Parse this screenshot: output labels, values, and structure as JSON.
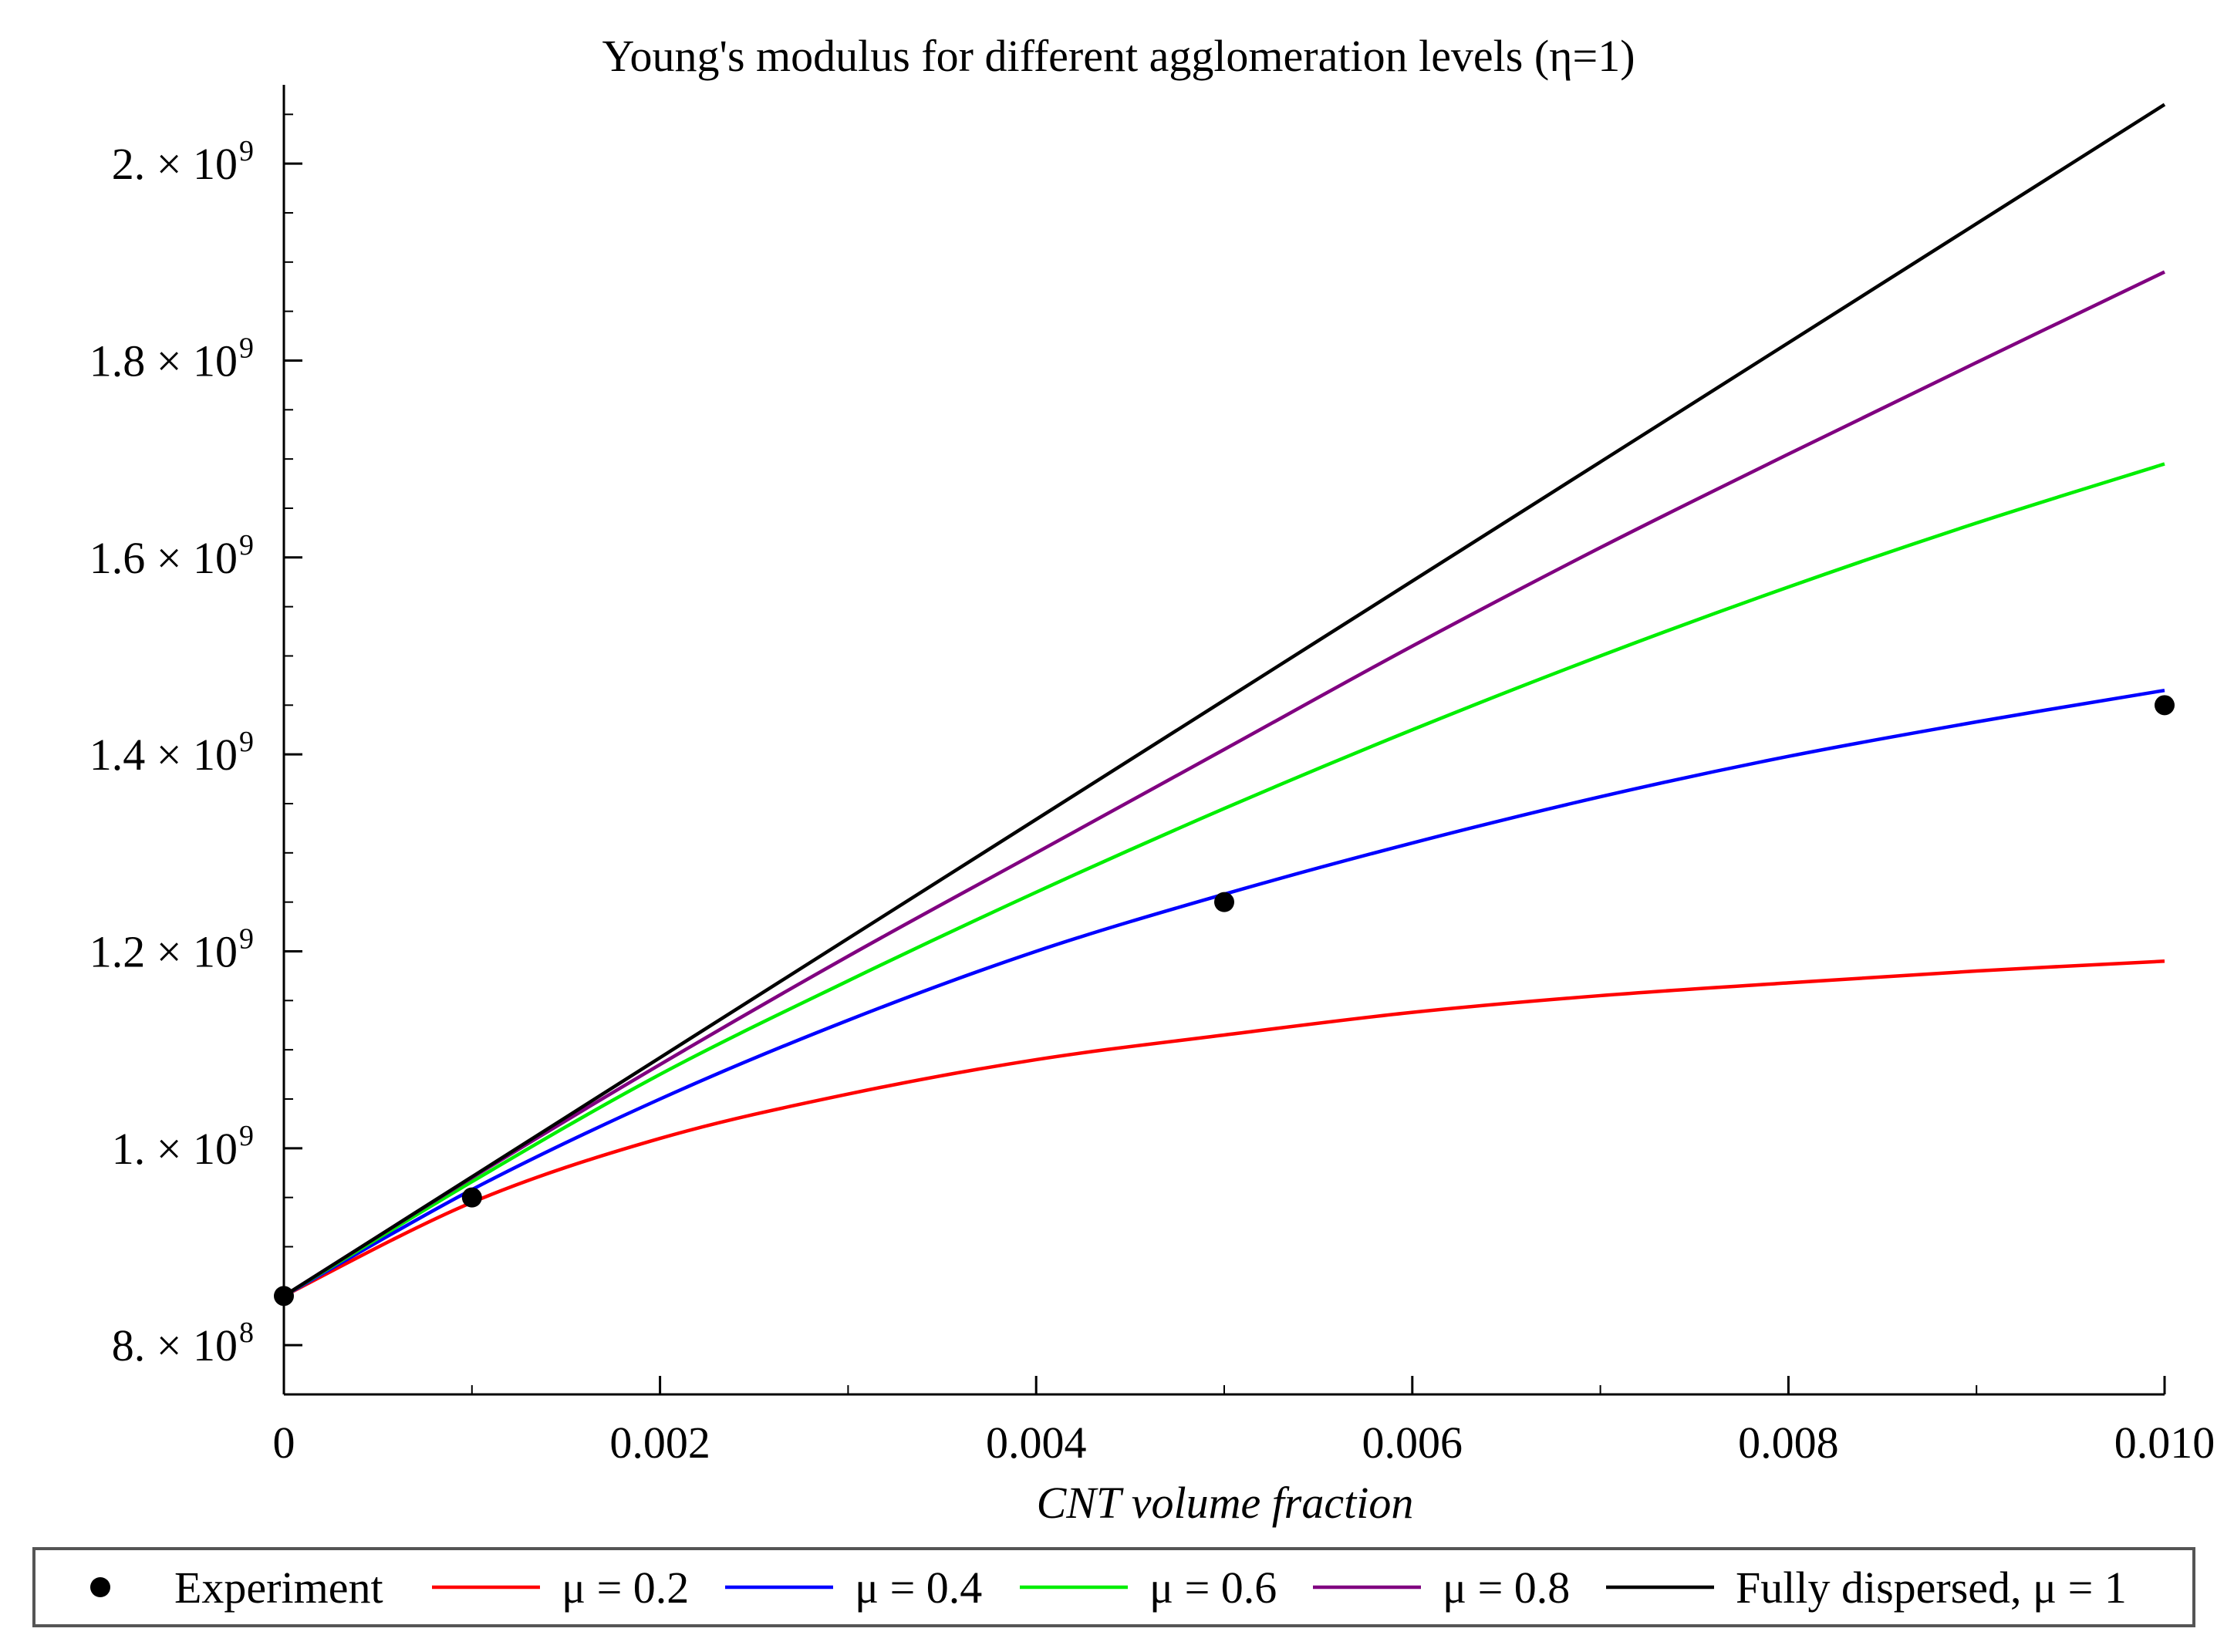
{
  "chart_data": {
    "type": "line",
    "title": "Young's modulus for different agglomeration levels (η=1)",
    "xlabel": "CNT volume fraction",
    "ylabel": "",
    "xlim": [
      0,
      0.01
    ],
    "ylim": [
      750000000,
      2080000000
    ],
    "x_ticks": [
      {
        "value": 0,
        "label": "0"
      },
      {
        "value": 0.002,
        "label": "0.002"
      },
      {
        "value": 0.004,
        "label": "0.004"
      },
      {
        "value": 0.006,
        "label": "0.006"
      },
      {
        "value": 0.008,
        "label": "0.008"
      },
      {
        "value": 0.01,
        "label": "0.010"
      }
    ],
    "y_ticks": [
      {
        "value": 800000000,
        "mantissa": "8.",
        "exponent": "8"
      },
      {
        "value": 1000000000,
        "mantissa": "1.",
        "exponent": "9"
      },
      {
        "value": 1200000000,
        "mantissa": "1.2",
        "exponent": "9"
      },
      {
        "value": 1400000000,
        "mantissa": "1.4",
        "exponent": "9"
      },
      {
        "value": 1600000000,
        "mantissa": "1.6",
        "exponent": "9"
      },
      {
        "value": 1800000000,
        "mantissa": "1.8",
        "exponent": "9"
      },
      {
        "value": 2000000000,
        "mantissa": "2.",
        "exponent": "9"
      }
    ],
    "times_symbol": "×",
    "base": "10",
    "x": [
      0,
      0.001,
      0.002,
      0.003,
      0.004,
      0.005,
      0.006,
      0.007,
      0.008,
      0.009,
      0.01
    ],
    "series": [
      {
        "name": "μ = 0.2",
        "color": "#ff0000",
        "values": [
          850000000,
          945000000,
          1010000000,
          1055000000,
          1090000000,
          1115000000,
          1138000000,
          1155000000,
          1168000000,
          1180000000,
          1190000000
        ]
      },
      {
        "name": "μ = 0.4",
        "color": "#0000ff",
        "values": [
          850000000,
          958000000,
          1050000000,
          1130000000,
          1200000000,
          1258000000,
          1310000000,
          1357000000,
          1398000000,
          1433000000,
          1465000000
        ]
      },
      {
        "name": "μ = 0.6",
        "color": "#00ee00",
        "values": [
          850000000,
          966000000,
          1075000000,
          1170000000,
          1260000000,
          1345000000,
          1425000000,
          1500000000,
          1570000000,
          1635000000,
          1695000000
        ]
      },
      {
        "name": "μ = 0.8",
        "color": "#800080",
        "values": [
          850000000,
          970000000,
          1085000000,
          1195000000,
          1300000000,
          1405000000,
          1510000000,
          1610000000,
          1705000000,
          1798000000,
          1890000000
        ]
      },
      {
        "name": "Fully dispersed, μ = 1",
        "color": "#000000",
        "values": [
          850000000,
          971000000,
          1092000000,
          1213000000,
          1334000000,
          1455000000,
          1576000000,
          1697000000,
          1818000000,
          1939000000,
          2060000000
        ]
      }
    ],
    "scatter": {
      "name": "Experiment",
      "color": "#000000",
      "points": [
        {
          "x": 0,
          "y": 850000000
        },
        {
          "x": 0.001,
          "y": 950000000
        },
        {
          "x": 0.005,
          "y": 1250000000
        },
        {
          "x": 0.01,
          "y": 1450000000
        }
      ]
    },
    "legend_position": "bottom"
  }
}
